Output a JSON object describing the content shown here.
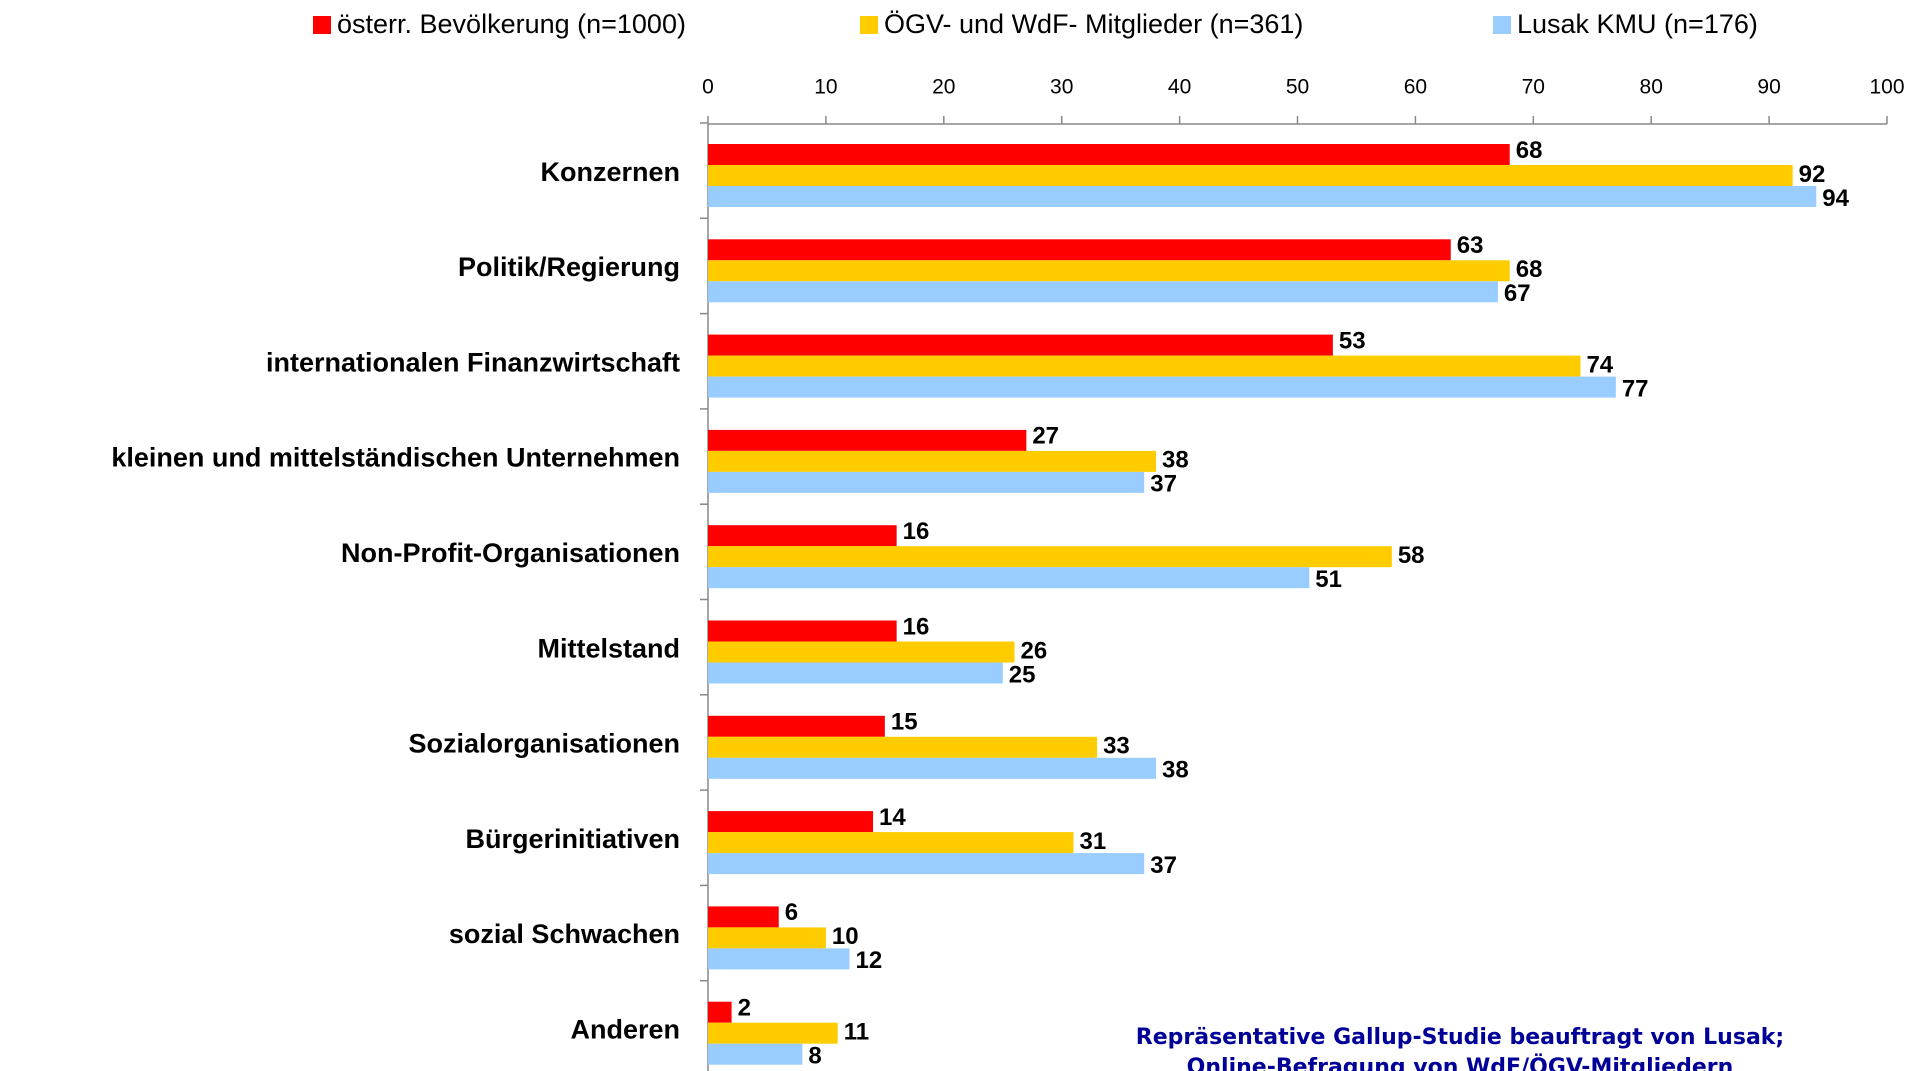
{
  "chart_data": {
    "type": "barh",
    "categories": [
      "Konzernen",
      "Politik/Regierung",
      "internationalen Finanzwirtschaft",
      "kleinen und mittelständischen Unternehmen",
      "Non-Profit-Organisationen",
      "Mittelstand",
      "Sozialorganisationen",
      "Bürgerinitiativen",
      "sozial Schwachen",
      "Anderen"
    ],
    "series": [
      {
        "name": "österr. Bevölkerung (n=1000)",
        "color": "#ff0000",
        "values": [
          68,
          63,
          53,
          27,
          16,
          16,
          15,
          14,
          6,
          2
        ]
      },
      {
        "name": "ÖGV- und WdF- Mitglieder (n=361)",
        "color": "#ffcc00",
        "values": [
          92,
          68,
          74,
          38,
          58,
          26,
          33,
          31,
          10,
          11
        ]
      },
      {
        "name": "Lusak KMU (n=176)",
        "color": "#99ccff",
        "values": [
          94,
          67,
          77,
          37,
          51,
          25,
          38,
          37,
          12,
          8
        ]
      }
    ],
    "xlim": [
      0,
      100
    ],
    "xticks": [
      0,
      10,
      20,
      30,
      40,
      50,
      60,
      70,
      80,
      90,
      100
    ],
    "legend": "top",
    "annotation": [
      "Repräsentative Gallup-Studie beauftragt von Lusak;",
      "Online-Befragung von WdF/ÖGV-Mitgliedern"
    ]
  }
}
